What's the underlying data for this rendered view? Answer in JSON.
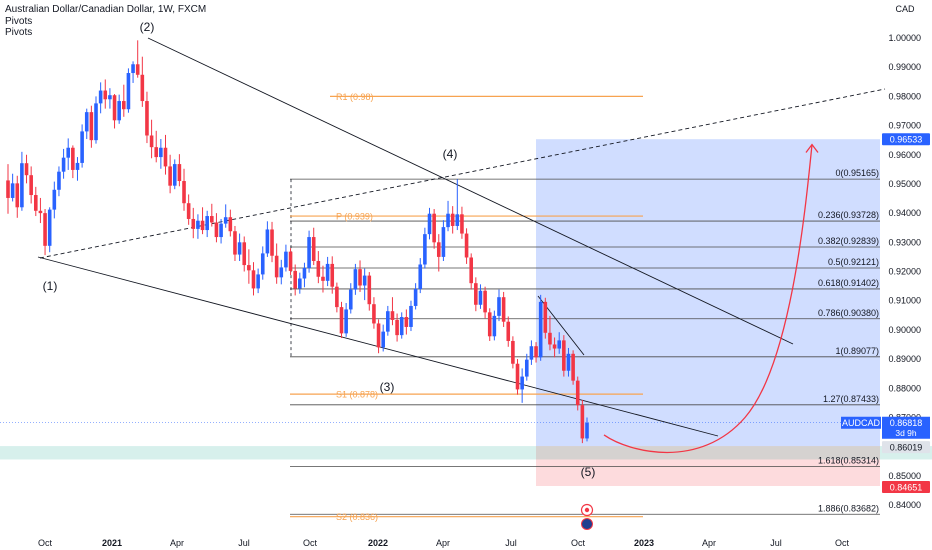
{
  "header": {
    "symbol_title": "Australian Dollar/Canadian Dollar, 1W, FXCM",
    "indicators": [
      "Pivots",
      "Pivots"
    ],
    "currency": "CAD"
  },
  "chart_data": {
    "type": "candlestick",
    "symbol": "AUDCAD",
    "timeframe": "1W",
    "broker": "FXCM",
    "x_ticks": [
      "Oct",
      "2021",
      "Apr",
      "Jul",
      "Oct",
      "2022",
      "Apr",
      "Jul",
      "Oct",
      "2023",
      "Apr",
      "Jul",
      "Oct"
    ],
    "y_ticks": [
      "1.00000",
      "0.99000",
      "0.98000",
      "0.97000",
      "0.96000",
      "0.95000",
      "0.94000",
      "0.93000",
      "0.92000",
      "0.91000",
      "0.90000",
      "0.89000",
      "0.88000",
      "0.87000",
      "0.86000",
      "0.85000",
      "0.84000"
    ],
    "ylim": [
      0.833,
      1.005
    ],
    "price_labels": {
      "target": "0.96533",
      "last": "0.86818",
      "last_symbol": "AUDCAD",
      "countdown": "3d 9h",
      "entry": "0.86019",
      "stop": "0.84651"
    },
    "fibonacci": [
      {
        "label": "0(0.95165)",
        "value": 0.95165
      },
      {
        "label": "0.236(0.93728)",
        "value": 0.93728
      },
      {
        "label": "0.382(0.92839)",
        "value": 0.92839
      },
      {
        "label": "0.5(0.92121)",
        "value": 0.92121
      },
      {
        "label": "0.618(0.91402)",
        "value": 0.91402
      },
      {
        "label": "0.786(0.90380)",
        "value": 0.9038
      },
      {
        "label": "1(0.89077)",
        "value": 0.89077
      },
      {
        "label": "1.27(0.87433)",
        "value": 0.87433
      },
      {
        "label": "1.618(0.85314)",
        "value": 0.85314
      },
      {
        "label": "1.886(0.83682)",
        "value": 0.83682
      }
    ],
    "pivots": [
      {
        "label": "R1 (0.98)",
        "value": 0.98
      },
      {
        "label": "P (0.939)",
        "value": 0.939
      },
      {
        "label": "S1 (0.878)",
        "value": 0.878
      },
      {
        "label": "S2 (0.836)",
        "value": 0.836
      }
    ],
    "wave_labels": [
      "(1)",
      "(2)",
      "(3)",
      "(4)",
      "(5)"
    ],
    "candles_ohlc": [
      [
        0.9512,
        0.9568,
        0.9398,
        0.9452
      ],
      [
        0.9452,
        0.9535,
        0.944,
        0.9502
      ],
      [
        0.9502,
        0.9528,
        0.9384,
        0.942
      ],
      [
        0.942,
        0.961,
        0.9408,
        0.9571
      ],
      [
        0.9571,
        0.96,
        0.9502,
        0.953
      ],
      [
        0.953,
        0.956,
        0.9433,
        0.9462
      ],
      [
        0.9462,
        0.949,
        0.939,
        0.9408
      ],
      [
        0.9408,
        0.9452,
        0.9366,
        0.94
      ],
      [
        0.94,
        0.9414,
        0.9256,
        0.9288
      ],
      [
        0.9288,
        0.942,
        0.9266,
        0.9412
      ],
      [
        0.9412,
        0.9508,
        0.9382,
        0.948
      ],
      [
        0.948,
        0.956,
        0.9458,
        0.9542
      ],
      [
        0.9542,
        0.962,
        0.9518,
        0.959
      ],
      [
        0.959,
        0.9656,
        0.9548,
        0.9624
      ],
      [
        0.9624,
        0.9632,
        0.952,
        0.9548
      ],
      [
        0.9548,
        0.9592,
        0.9511,
        0.9572
      ],
      [
        0.9572,
        0.9704,
        0.9556,
        0.968
      ],
      [
        0.968,
        0.9758,
        0.9654,
        0.9746
      ],
      [
        0.9746,
        0.9768,
        0.9624,
        0.965
      ],
      [
        0.965,
        0.98,
        0.9638,
        0.9776
      ],
      [
        0.9776,
        0.9848,
        0.9742,
        0.982
      ],
      [
        0.982,
        0.9858,
        0.9758,
        0.979
      ],
      [
        0.979,
        0.9828,
        0.9758,
        0.9804
      ],
      [
        0.9804,
        0.9808,
        0.969,
        0.9718
      ],
      [
        0.9718,
        0.9806,
        0.9706,
        0.9784
      ],
      [
        0.9784,
        0.984,
        0.973,
        0.9756
      ],
      [
        0.9756,
        0.9896,
        0.9744,
        0.988
      ],
      [
        0.988,
        0.992,
        0.9846,
        0.991
      ],
      [
        0.991,
        0.9992,
        0.9864,
        0.9874
      ],
      [
        0.9874,
        0.9936,
        0.9764,
        0.9784
      ],
      [
        0.9784,
        0.9816,
        0.964,
        0.9666
      ],
      [
        0.9666,
        0.972,
        0.9588,
        0.9626
      ],
      [
        0.9626,
        0.9682,
        0.9574,
        0.9592
      ],
      [
        0.9592,
        0.9654,
        0.9552,
        0.9624
      ],
      [
        0.9624,
        0.9668,
        0.9532,
        0.956
      ],
      [
        0.956,
        0.96,
        0.9468,
        0.9494
      ],
      [
        0.9494,
        0.9584,
        0.9482,
        0.9568
      ],
      [
        0.9568,
        0.9602,
        0.9492,
        0.951
      ],
      [
        0.951,
        0.9552,
        0.9408,
        0.9434
      ],
      [
        0.9434,
        0.9464,
        0.936,
        0.938
      ],
      [
        0.938,
        0.9418,
        0.9314,
        0.9346
      ],
      [
        0.9346,
        0.9396,
        0.9312,
        0.9374
      ],
      [
        0.9374,
        0.942,
        0.9328,
        0.9342
      ],
      [
        0.9342,
        0.9408,
        0.9318,
        0.939
      ],
      [
        0.939,
        0.9432,
        0.9354,
        0.9368
      ],
      [
        0.9368,
        0.94,
        0.93,
        0.9318
      ],
      [
        0.9318,
        0.938,
        0.9296,
        0.9364
      ],
      [
        0.9364,
        0.943,
        0.935,
        0.9386
      ],
      [
        0.9386,
        0.9412,
        0.932,
        0.9338
      ],
      [
        0.9338,
        0.9356,
        0.9236,
        0.9258
      ],
      [
        0.9258,
        0.933,
        0.9236,
        0.93
      ],
      [
        0.93,
        0.932,
        0.92,
        0.9222
      ],
      [
        0.9222,
        0.9276,
        0.9158,
        0.9204
      ],
      [
        0.9204,
        0.9232,
        0.9118,
        0.9142
      ],
      [
        0.9142,
        0.921,
        0.9126,
        0.919
      ],
      [
        0.919,
        0.9286,
        0.9172,
        0.9262
      ],
      [
        0.9262,
        0.9372,
        0.925,
        0.9344
      ],
      [
        0.9344,
        0.937,
        0.9232,
        0.9254
      ],
      [
        0.9254,
        0.9296,
        0.9158,
        0.918
      ],
      [
        0.918,
        0.924,
        0.9156,
        0.9214
      ],
      [
        0.9214,
        0.9292,
        0.92,
        0.9268
      ],
      [
        0.9268,
        0.928,
        0.9188,
        0.9202
      ],
      [
        0.9202,
        0.9224,
        0.9118,
        0.9142
      ],
      [
        0.9142,
        0.9196,
        0.9124,
        0.9176
      ],
      [
        0.9176,
        0.923,
        0.9146,
        0.9212
      ],
      [
        0.9212,
        0.934,
        0.9196,
        0.9318
      ],
      [
        0.9318,
        0.935,
        0.9222,
        0.9236
      ],
      [
        0.9236,
        0.927,
        0.916,
        0.9182
      ],
      [
        0.9182,
        0.922,
        0.9128,
        0.9168
      ],
      [
        0.9168,
        0.925,
        0.915,
        0.9226
      ],
      [
        0.9226,
        0.9252,
        0.9124,
        0.9148
      ],
      [
        0.9148,
        0.9162,
        0.906,
        0.9078
      ],
      [
        0.9078,
        0.9096,
        0.8972,
        0.8988
      ],
      [
        0.8988,
        0.9092,
        0.8976,
        0.907
      ],
      [
        0.907,
        0.916,
        0.9056,
        0.9138
      ],
      [
        0.9138,
        0.9226,
        0.912,
        0.9208
      ],
      [
        0.9208,
        0.9238,
        0.913,
        0.9152
      ],
      [
        0.9152,
        0.921,
        0.9102,
        0.9186
      ],
      [
        0.9186,
        0.9198,
        0.9066,
        0.9088
      ],
      [
        0.9088,
        0.9112,
        0.9004,
        0.9022
      ],
      [
        0.9022,
        0.9036,
        0.892,
        0.894
      ],
      [
        0.894,
        0.9018,
        0.8926,
        0.8994
      ],
      [
        0.8994,
        0.9082,
        0.898,
        0.9064
      ],
      [
        0.9064,
        0.9112,
        0.9016,
        0.9034
      ],
      [
        0.9034,
        0.9056,
        0.896,
        0.8982
      ],
      [
        0.8982,
        0.906,
        0.897,
        0.9044
      ],
      [
        0.9044,
        0.907,
        0.8984,
        0.901
      ],
      [
        0.901,
        0.91,
        0.8996,
        0.9082
      ],
      [
        0.9082,
        0.916,
        0.907,
        0.914
      ],
      [
        0.914,
        0.9246,
        0.9126,
        0.9224
      ],
      [
        0.9224,
        0.935,
        0.921,
        0.9328
      ],
      [
        0.9328,
        0.9418,
        0.931,
        0.9398
      ],
      [
        0.9398,
        0.9414,
        0.9278,
        0.93
      ],
      [
        0.93,
        0.9328,
        0.92,
        0.925
      ],
      [
        0.925,
        0.9376,
        0.9236,
        0.9352
      ],
      [
        0.9352,
        0.9442,
        0.9338,
        0.9398
      ],
      [
        0.9398,
        0.9424,
        0.933,
        0.9356
      ],
      [
        0.9356,
        0.9516,
        0.9342,
        0.9396
      ],
      [
        0.9396,
        0.9422,
        0.9312,
        0.933
      ],
      [
        0.933,
        0.9348,
        0.9226,
        0.9248
      ],
      [
        0.9248,
        0.9262,
        0.9138,
        0.916
      ],
      [
        0.916,
        0.918,
        0.9064,
        0.9086
      ],
      [
        0.9086,
        0.9156,
        0.9072,
        0.9134
      ],
      [
        0.9134,
        0.9148,
        0.904,
        0.906
      ],
      [
        0.906,
        0.9074,
        0.8962,
        0.8978
      ],
      [
        0.8978,
        0.9066,
        0.8964,
        0.9048
      ],
      [
        0.9048,
        0.9138,
        0.903,
        0.9112
      ],
      [
        0.9112,
        0.913,
        0.901,
        0.9028
      ],
      [
        0.9028,
        0.9046,
        0.8942,
        0.8962
      ],
      [
        0.8962,
        0.8978,
        0.8868,
        0.8884
      ],
      [
        0.8884,
        0.89,
        0.8778,
        0.8796
      ],
      [
        0.8796,
        0.8868,
        0.875,
        0.884
      ],
      [
        0.884,
        0.8918,
        0.8826,
        0.8898
      ],
      [
        0.8898,
        0.8964,
        0.888,
        0.8944
      ],
      [
        0.8944,
        0.8958,
        0.8888,
        0.8906
      ],
      [
        0.8906,
        0.912,
        0.8894,
        0.9096
      ],
      [
        0.9096,
        0.911,
        0.897,
        0.899
      ],
      [
        0.899,
        0.9048,
        0.893,
        0.895
      ],
      [
        0.895,
        0.8974,
        0.8906,
        0.8936
      ],
      [
        0.8936,
        0.8992,
        0.8918,
        0.8964
      ],
      [
        0.8964,
        0.8982,
        0.884,
        0.886
      ],
      [
        0.886,
        0.8938,
        0.884,
        0.8918
      ],
      [
        0.8918,
        0.893,
        0.8812,
        0.8826
      ],
      [
        0.8826,
        0.884,
        0.8724,
        0.8742
      ],
      [
        0.8742,
        0.876,
        0.8612,
        0.8628
      ],
      [
        0.8628,
        0.87,
        0.8618,
        0.8682
      ]
    ],
    "projection": {
      "from_price": 0.864,
      "low_price": 0.8597,
      "to_price": 0.9635
    }
  }
}
